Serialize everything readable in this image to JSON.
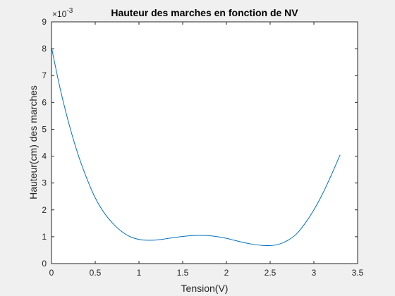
{
  "chart_data": {
    "type": "line",
    "title": "Hauteur des marches en fonction de NV",
    "xlabel": "Tension(V)",
    "ylabel": "Hauteur(cm) des marches",
    "y_exponent_label": "×10",
    "y_exponent_power": "-3",
    "xlim": [
      0,
      3.5
    ],
    "ylim": [
      0,
      9
    ],
    "x_ticks": [
      0,
      0.5,
      1,
      1.5,
      2,
      2.5,
      3,
      3.5
    ],
    "x_tick_labels": [
      "0",
      "0.5",
      "1",
      "1.5",
      "2",
      "2.5",
      "3",
      "3.5"
    ],
    "y_ticks": [
      0,
      1,
      2,
      3,
      4,
      5,
      6,
      7,
      8,
      9
    ],
    "y_tick_labels": [
      "0",
      "1",
      "2",
      "3",
      "4",
      "5",
      "6",
      "7",
      "8",
      "9"
    ],
    "grid": false,
    "series": [
      {
        "color": "#0072bd",
        "x": [
          0,
          0.1,
          0.2,
          0.3,
          0.4,
          0.5,
          0.6,
          0.7,
          0.8,
          0.9,
          1.0,
          1.1,
          1.2,
          1.3,
          1.4,
          1.5,
          1.6,
          1.7,
          1.8,
          1.9,
          2.0,
          2.1,
          2.2,
          2.3,
          2.4,
          2.5,
          2.6,
          2.7,
          2.8,
          2.9,
          3.0,
          3.1,
          3.2,
          3.3
        ],
        "y": [
          8.05,
          6.5,
          5.2,
          4.1,
          3.2,
          2.45,
          1.9,
          1.5,
          1.2,
          1.0,
          0.9,
          0.87,
          0.88,
          0.92,
          0.97,
          1.01,
          1.04,
          1.05,
          1.04,
          1.0,
          0.94,
          0.86,
          0.78,
          0.72,
          0.68,
          0.67,
          0.72,
          0.86,
          1.1,
          1.5,
          2.0,
          2.6,
          3.3,
          4.05
        ]
      }
    ]
  }
}
